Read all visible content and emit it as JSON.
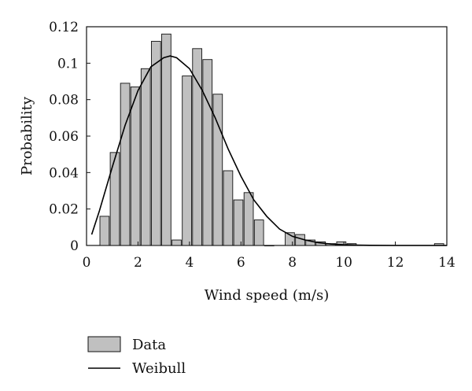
{
  "chart_data": {
    "type": "bar",
    "xlabel": "Wind speed (m/s)",
    "ylabel": "Probability",
    "xlim": [
      0,
      14
    ],
    "ylim": [
      0,
      0.12
    ],
    "xticks": [
      0,
      2,
      4,
      6,
      8,
      10,
      12,
      14
    ],
    "yticks": [
      0,
      0.02,
      0.04,
      0.06,
      0.08,
      0.1,
      0.12
    ],
    "ytick_labels": [
      "0",
      "0.02",
      "0.04",
      "0.06",
      "0.08",
      "0.1",
      "0.12"
    ],
    "bar_width": 0.36,
    "bar_color": "#c0c0c0",
    "line_color": "#000000",
    "grid": false,
    "legend": {
      "placement": "below",
      "entries": [
        "Data",
        "Weibull"
      ]
    },
    "series": [
      {
        "name": "Data",
        "type": "bar",
        "x": [
          0.7,
          1.1,
          1.5,
          1.9,
          2.3,
          2.7,
          3.1,
          3.5,
          3.9,
          4.3,
          4.7,
          5.1,
          5.5,
          5.9,
          6.3,
          6.7,
          7.1,
          7.9,
          8.3,
          8.7,
          9.1,
          9.5,
          9.9,
          10.3,
          13.7
        ],
        "values": [
          0.016,
          0.051,
          0.089,
          0.087,
          0.097,
          0.112,
          0.116,
          0.003,
          0.093,
          0.108,
          0.102,
          0.083,
          0.041,
          0.025,
          0.029,
          0.014,
          0.0,
          0.007,
          0.006,
          0.003,
          0.002,
          0.001,
          0.002,
          0.001,
          0.001
        ]
      },
      {
        "name": "Weibull",
        "type": "line",
        "x": [
          0.2,
          0.5,
          1.0,
          1.5,
          2.0,
          2.5,
          3.0,
          3.25,
          3.5,
          4.0,
          4.5,
          5.0,
          5.5,
          6.0,
          6.5,
          7.0,
          7.5,
          8.0,
          8.5,
          9.0,
          9.5,
          10.0,
          10.5,
          11.0,
          12.0,
          13.0,
          14.0
        ],
        "values": [
          0.006,
          0.019,
          0.043,
          0.066,
          0.085,
          0.098,
          0.103,
          0.104,
          0.103,
          0.097,
          0.085,
          0.07,
          0.053,
          0.038,
          0.025,
          0.016,
          0.009,
          0.005,
          0.003,
          0.0015,
          0.0008,
          0.0004,
          0.0002,
          0.0001,
          0.0,
          0.0,
          0.0
        ]
      }
    ]
  }
}
